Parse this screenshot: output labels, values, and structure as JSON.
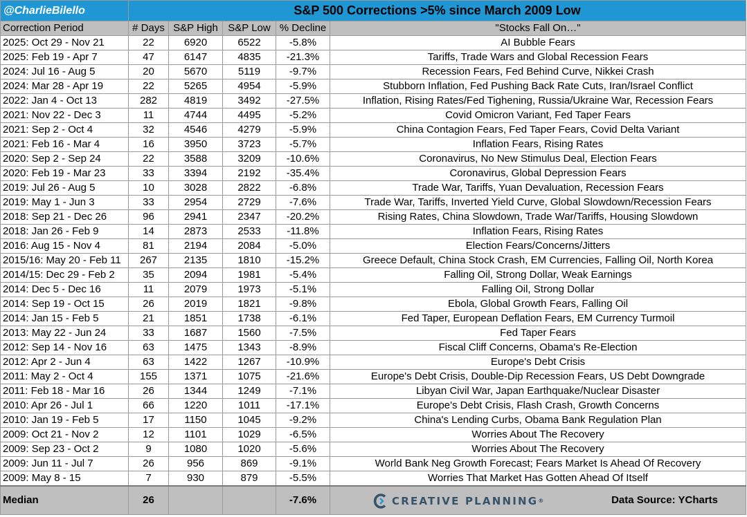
{
  "header": {
    "handle": "@CharlieBilello",
    "title": "S&P 500 Corrections >5% since March 2009 Low"
  },
  "columns": [
    "Correction Period",
    "# Days",
    "S&P High",
    "S&P Low",
    "% Decline",
    "\"Stocks Fall On…\""
  ],
  "rows": [
    [
      "2025: Oct 29 - Nov 21",
      "22",
      "6920",
      "6522",
      "-5.8%",
      "AI Bubble Fears"
    ],
    [
      "2025: Feb 19 - Apr 7",
      "47",
      "6147",
      "4835",
      "-21.3%",
      "Tariffs, Trade Wars and Global Recession Fears"
    ],
    [
      "2024: Jul 16 - Aug 5",
      "20",
      "5670",
      "5119",
      "-9.7%",
      "Recession Fears, Fed Behind Curve, Nikkei Crash"
    ],
    [
      "2024: Mar 28 - Apr 19",
      "22",
      "5265",
      "4954",
      "-5.9%",
      "Stubborn Inflation, Fed Pushing Back Rate Cuts, Iran/Israel Conflict"
    ],
    [
      "2022: Jan 4 - Oct 13",
      "282",
      "4819",
      "3492",
      "-27.5%",
      "Inflation, Rising Rates/Fed Tighening, Russia/Ukraine War, Recession Fears"
    ],
    [
      "2021: Nov 22 - Dec 3",
      "11",
      "4744",
      "4495",
      "-5.2%",
      "Covid Omicron Variant, Fed Taper Fears"
    ],
    [
      "2021: Sep 2 - Oct 4",
      "32",
      "4546",
      "4279",
      "-5.9%",
      "China Contagion Fears, Fed Taper Fears, Covid Delta Variant"
    ],
    [
      "2021: Feb 16 - Mar 4",
      "16",
      "3950",
      "3723",
      "-5.7%",
      "Inflation Fears, Rising Rates"
    ],
    [
      "2020: Sep 2 - Sep 24",
      "22",
      "3588",
      "3209",
      "-10.6%",
      "Coronavirus, No New Stimulus Deal, Election Fears"
    ],
    [
      "2020: Feb 19 - Mar 23",
      "33",
      "3394",
      "2192",
      "-35.4%",
      "Coronavirus, Global Depression Fears"
    ],
    [
      "2019: Jul 26 - Aug 5",
      "10",
      "3028",
      "2822",
      "-6.8%",
      "Trade War, Tariffs, Yuan Devaluation, Recession Fears"
    ],
    [
      "2019: May 1 - Jun 3",
      "33",
      "2954",
      "2729",
      "-7.6%",
      "Trade War, Tariffs, Inverted Yield Curve, Global Slowdown/Recession Fears"
    ],
    [
      "2018: Sep 21 - Dec 26",
      "96",
      "2941",
      "2347",
      "-20.2%",
      "Rising Rates, China Slowdown, Trade War/Tariffs, Housing Slowdown"
    ],
    [
      "2018: Jan 26 - Feb 9",
      "14",
      "2873",
      "2533",
      "-11.8%",
      "Inflation Fears, Rising Rates"
    ],
    [
      "2016: Aug 15 - Nov 4",
      "81",
      "2194",
      "2084",
      "-5.0%",
      "Election Fears/Concerns/Jitters"
    ],
    [
      "2015/16: May 20 - Feb 11",
      "267",
      "2135",
      "1810",
      "-15.2%",
      "Greece Default, China Stock Crash, EM Currencies, Falling Oil, North Korea"
    ],
    [
      "2014/15: Dec 29 - Feb 2",
      "35",
      "2094",
      "1981",
      "-5.4%",
      "Falling Oil, Strong Dollar, Weak Earnings"
    ],
    [
      "2014: Dec 5 - Dec 16",
      "11",
      "2079",
      "1973",
      "-5.1%",
      "Falling Oil, Strong Dollar"
    ],
    [
      "2014: Sep 19 - Oct 15",
      "26",
      "2019",
      "1821",
      "-9.8%",
      "Ebola, Global Growth Fears, Falling Oil"
    ],
    [
      "2014: Jan 15 - Feb 5",
      "21",
      "1851",
      "1738",
      "-6.1%",
      "Fed Taper, European Deflation Fears, EM Currency Turmoil"
    ],
    [
      "2013: May 22 - Jun 24",
      "33",
      "1687",
      "1560",
      "-7.5%",
      "Fed Taper Fears"
    ],
    [
      "2012: Sep 14 - Nov 16",
      "63",
      "1475",
      "1343",
      "-8.9%",
      "Fiscal Cliff Concerns, Obama's Re-Election"
    ],
    [
      "2012: Apr 2 - Jun 4",
      "63",
      "1422",
      "1267",
      "-10.9%",
      "Europe's Debt Crisis"
    ],
    [
      "2011: May 2 - Oct 4",
      "155",
      "1371",
      "1075",
      "-21.6%",
      "Europe's Debt Crisis, Double-Dip Recession Fears, US Debt Downgrade"
    ],
    [
      "2011: Feb 18 - Mar 16",
      "26",
      "1344",
      "1249",
      "-7.1%",
      "Libyan Civil War, Japan Earthquake/Nuclear Disaster"
    ],
    [
      "2010: Apr 26 - Jul 1",
      "66",
      "1220",
      "1011",
      "-17.1%",
      "Europe's Debt Crisis, Flash Crash, Growth Concerns"
    ],
    [
      "2010: Jan 19 - Feb 5",
      "17",
      "1150",
      "1045",
      "-9.2%",
      "China's Lending Curbs, Obama Bank Regulation Plan"
    ],
    [
      "2009: Oct 21 - Nov 2",
      "12",
      "1101",
      "1029",
      "-6.5%",
      "Worries About The Recovery"
    ],
    [
      "2009: Sep 23 - Oct 2",
      "9",
      "1080",
      "1020",
      "-5.6%",
      "Worries About The Recovery"
    ],
    [
      "2009: Jun 11 - Jul 7",
      "26",
      "956",
      "869",
      "-9.1%",
      "World Bank Neg Growth Forecast; Fears Market Is Ahead Of Recovery"
    ],
    [
      "2009: May 8 - 15",
      "7",
      "930",
      "879",
      "-5.5%",
      "Worries That Market Has Gotten Ahead Of Itself"
    ]
  ],
  "median": {
    "label": "Median",
    "days": "26",
    "high": "",
    "low": "",
    "decline": "-7.6%"
  },
  "footer": {
    "logo_text": "CREATIVE PLANNING",
    "logo_tm": "®",
    "logo_icon": "creative-planning-c-logo",
    "source": "Data Source: YCharts"
  },
  "colors": {
    "header_blue": "#1f97d4",
    "header_gray": "#bfbfbf",
    "logo_navy": "#35536a",
    "logo_teal": "#2b9ad0"
  }
}
